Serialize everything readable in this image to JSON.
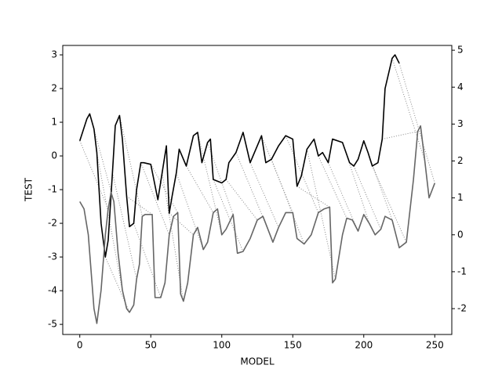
{
  "chart_data": {
    "type": "line",
    "xlabel": "MODEL",
    "ylabel": "TEST",
    "xlim": [
      -12,
      262
    ],
    "xticks": [
      0,
      50,
      100,
      150,
      200,
      250
    ],
    "ylim": [
      -5.3,
      3.28
    ],
    "yticks": [
      -5,
      -4,
      -3,
      -2,
      -1,
      0,
      1,
      2,
      3
    ],
    "y2lim": [
      -2.7,
      5.13
    ],
    "y2ticks": [
      -2,
      -1,
      0,
      1,
      2,
      3,
      4,
      5
    ],
    "series": [
      {
        "color": "#000000",
        "x": [
          0,
          5,
          7,
          10,
          12,
          15,
          18,
          20,
          23,
          25,
          28,
          30,
          33,
          35,
          38,
          40,
          43,
          45,
          50,
          55,
          58,
          61,
          63,
          65,
          68,
          70,
          75,
          80,
          83,
          86,
          90,
          92,
          94,
          100,
          103,
          105,
          110,
          115,
          120,
          125,
          128,
          131,
          135,
          140,
          145,
          150,
          153,
          156,
          160,
          165,
          168,
          171,
          175,
          178,
          185,
          190,
          193,
          196,
          200,
          203,
          206,
          210,
          213,
          215,
          220,
          222,
          225
        ],
        "values": [
          0.45,
          1.1,
          1.25,
          0.8,
          0.1,
          -2.0,
          -3.0,
          -2.5,
          -0.5,
          0.9,
          1.2,
          0.5,
          -1.2,
          -2.1,
          -2.0,
          -1.0,
          -0.2,
          -0.2,
          -0.25,
          -1.3,
          -0.5,
          0.3,
          -1.7,
          -1.2,
          -0.5,
          0.2,
          -0.3,
          0.6,
          0.7,
          -0.2,
          0.4,
          0.5,
          -0.7,
          -0.8,
          -0.7,
          -0.2,
          0.1,
          0.7,
          -0.2,
          0.3,
          0.6,
          -0.2,
          -0.1,
          0.3,
          0.6,
          0.5,
          -0.9,
          -0.6,
          0.2,
          0.5,
          0.0,
          0.1,
          -0.2,
          0.5,
          0.4,
          -0.2,
          -0.3,
          -0.1,
          0.45,
          0.1,
          -0.3,
          -0.2,
          0.5,
          2.0,
          2.9,
          3.0,
          2.75
        ]
      },
      {
        "color": "#666666",
        "axis": "y2",
        "x": [
          0,
          3,
          6,
          8,
          10,
          12,
          15,
          18,
          20,
          22,
          24,
          27,
          30,
          33,
          35,
          38,
          40,
          42,
          44,
          46,
          51,
          53,
          57,
          60,
          63,
          66,
          69,
          71,
          73,
          76,
          80,
          83,
          87,
          90,
          94,
          97,
          100,
          103,
          108,
          111,
          115,
          120,
          125,
          129,
          132,
          136,
          140,
          145,
          150,
          153,
          158,
          163,
          168,
          172,
          176,
          178,
          180,
          185,
          188,
          192,
          196,
          200,
          204,
          208,
          212,
          215,
          220,
          225,
          230,
          235,
          238,
          240,
          243,
          246,
          250
        ],
        "values": [
          0.9,
          0.7,
          0.0,
          -1.0,
          -2.0,
          -2.4,
          -1.5,
          0.0,
          0.7,
          1.15,
          0.9,
          -0.5,
          -1.5,
          -2.0,
          -2.1,
          -1.9,
          -1.2,
          -0.8,
          0.5,
          0.55,
          0.55,
          -1.7,
          -1.7,
          -1.3,
          0.0,
          0.5,
          0.6,
          -1.6,
          -1.8,
          -1.3,
          0.0,
          0.2,
          -0.4,
          -0.2,
          0.6,
          0.7,
          0.0,
          0.15,
          0.55,
          -0.5,
          -0.45,
          -0.1,
          0.4,
          0.5,
          0.2,
          -0.2,
          0.2,
          0.6,
          0.6,
          -0.1,
          -0.25,
          0.0,
          0.6,
          0.7,
          0.75,
          -1.3,
          -1.2,
          0.0,
          0.45,
          0.4,
          0.1,
          0.55,
          0.3,
          0.0,
          0.15,
          0.5,
          0.4,
          -0.35,
          -0.2,
          1.5,
          2.8,
          2.95,
          2.0,
          1.0,
          1.4
        ]
      }
    ]
  }
}
